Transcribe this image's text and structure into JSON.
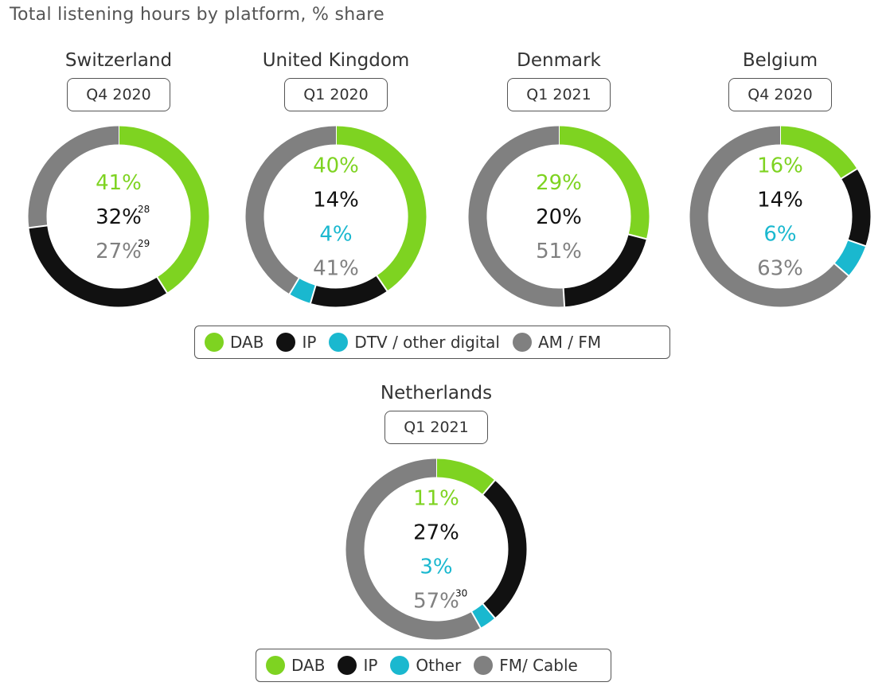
{
  "title": "Total listening hours by platform, % share",
  "colors": {
    "DAB": "#7ed321",
    "IP": "#111111",
    "DTV": "#1ab8cf",
    "AM": "#808080"
  },
  "legend_main": [
    {
      "label": "DAB",
      "color": "#7ed321"
    },
    {
      "label": "IP",
      "color": "#111111"
    },
    {
      "label": "DTV / other digital",
      "color": "#1ab8cf"
    },
    {
      "label": "AM / FM",
      "color": "#808080"
    }
  ],
  "legend_nl": [
    {
      "label": "DAB",
      "color": "#7ed321"
    },
    {
      "label": "IP",
      "color": "#111111"
    },
    {
      "label": "Other",
      "color": "#1ab8cf"
    },
    {
      "label": "FM/ Cable",
      "color": "#808080"
    }
  ],
  "chart_data": [
    {
      "type": "pie",
      "variant": "donut",
      "country": "Switzerland",
      "period": "Q4 2020",
      "slices": [
        {
          "name": "DAB",
          "value": 41,
          "label": "41%",
          "sup": "",
          "color": "#7ed321"
        },
        {
          "name": "IP",
          "value": 32,
          "label": "32%",
          "sup": "28",
          "color": "#111111"
        },
        {
          "name": "AM / FM",
          "value": 27,
          "label": "27%",
          "sup": "29",
          "color": "#808080"
        }
      ]
    },
    {
      "type": "pie",
      "variant": "donut",
      "country": "United Kingdom",
      "period": "Q1 2020",
      "slices": [
        {
          "name": "DAB",
          "value": 40,
          "label": "40%",
          "sup": "",
          "color": "#7ed321"
        },
        {
          "name": "IP",
          "value": 14,
          "label": "14%",
          "sup": "",
          "color": "#111111"
        },
        {
          "name": "DTV / other digital",
          "value": 4,
          "label": "4%",
          "sup": "",
          "color": "#1ab8cf"
        },
        {
          "name": "AM / FM",
          "value": 41,
          "label": "41%",
          "sup": "",
          "color": "#808080"
        }
      ]
    },
    {
      "type": "pie",
      "variant": "donut",
      "country": "Denmark",
      "period": "Q1 2021",
      "slices": [
        {
          "name": "DAB",
          "value": 29,
          "label": "29%",
          "sup": "",
          "color": "#7ed321"
        },
        {
          "name": "IP",
          "value": 20,
          "label": "20%",
          "sup": "",
          "color": "#111111"
        },
        {
          "name": "AM / FM",
          "value": 51,
          "label": "51%",
          "sup": "",
          "color": "#808080"
        }
      ]
    },
    {
      "type": "pie",
      "variant": "donut",
      "country": "Belgium",
      "period": "Q4 2020",
      "slices": [
        {
          "name": "DAB",
          "value": 16,
          "label": "16%",
          "sup": "",
          "color": "#7ed321"
        },
        {
          "name": "IP",
          "value": 14,
          "label": "14%",
          "sup": "",
          "color": "#111111"
        },
        {
          "name": "DTV / other digital",
          "value": 6,
          "label": "6%",
          "sup": "",
          "color": "#1ab8cf"
        },
        {
          "name": "AM / FM",
          "value": 63,
          "label": "63%",
          "sup": "",
          "color": "#808080"
        }
      ]
    },
    {
      "type": "pie",
      "variant": "donut",
      "country": "Netherlands",
      "period": "Q1 2021",
      "slices": [
        {
          "name": "DAB",
          "value": 11,
          "label": "11%",
          "sup": "",
          "color": "#7ed321"
        },
        {
          "name": "IP",
          "value": 27,
          "label": "27%",
          "sup": "",
          "color": "#111111"
        },
        {
          "name": "Other",
          "value": 3,
          "label": "3%",
          "sup": "",
          "color": "#1ab8cf"
        },
        {
          "name": "FM/ Cable",
          "value": 57,
          "label": "57%",
          "sup": "30",
          "color": "#808080"
        }
      ]
    }
  ]
}
